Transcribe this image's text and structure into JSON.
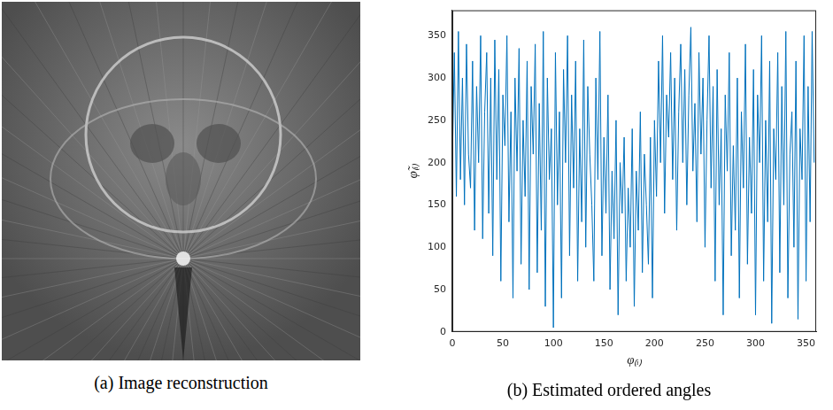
{
  "image_panel": {
    "caption": "(a) Image reconstruction"
  },
  "chart_data": {
    "type": "line",
    "title": "(b) Estimated ordered angles",
    "x_label": "φ₍ᵢ₎",
    "y_label": "φ̃₍ᵢ₎",
    "color": "#0072bd",
    "grid": false,
    "xlim": [
      0,
      360
    ],
    "xticks": [
      0,
      50,
      100,
      150,
      200,
      250,
      300,
      350
    ],
    "ylim": [
      0,
      380
    ],
    "yticks": [
      0,
      50,
      100,
      150,
      200,
      250,
      300,
      350
    ],
    "x": [
      0,
      2,
      4,
      6,
      8,
      10,
      12,
      14,
      16,
      18,
      20,
      22,
      24,
      26,
      28,
      30,
      32,
      34,
      36,
      38,
      40,
      42,
      44,
      46,
      48,
      50,
      52,
      54,
      56,
      58,
      60,
      62,
      64,
      66,
      68,
      70,
      72,
      74,
      76,
      78,
      80,
      82,
      84,
      86,
      88,
      90,
      92,
      94,
      96,
      98,
      100,
      102,
      104,
      106,
      108,
      110,
      112,
      114,
      116,
      118,
      120,
      122,
      124,
      126,
      128,
      130,
      132,
      134,
      136,
      138,
      140,
      142,
      144,
      146,
      148,
      150,
      152,
      154,
      156,
      158,
      160,
      162,
      164,
      166,
      168,
      170,
      172,
      174,
      176,
      178,
      180,
      182,
      184,
      186,
      188,
      190,
      192,
      194,
      196,
      198,
      200,
      202,
      204,
      206,
      208,
      210,
      212,
      214,
      216,
      218,
      220,
      222,
      224,
      226,
      228,
      230,
      232,
      234,
      236,
      238,
      240,
      242,
      244,
      246,
      248,
      250,
      252,
      254,
      256,
      258,
      260,
      262,
      264,
      266,
      268,
      270,
      272,
      274,
      276,
      278,
      280,
      282,
      284,
      286,
      288,
      290,
      292,
      294,
      296,
      298,
      300,
      302,
      304,
      306,
      308,
      310,
      312,
      314,
      316,
      318,
      320,
      322,
      324,
      326,
      328,
      330,
      332,
      334,
      336,
      338,
      340,
      342,
      344,
      346,
      348,
      350,
      352,
      354,
      356,
      358
    ],
    "values": [
      200,
      330,
      160,
      355,
      180,
      300,
      150,
      340,
      210,
      170,
      320,
      120,
      290,
      200,
      350,
      110,
      260,
      330,
      140,
      300,
      90,
      345,
      180,
      310,
      60,
      280,
      220,
      350,
      130,
      260,
      40,
      300,
      190,
      335,
      80,
      250,
      160,
      320,
      50,
      290,
      210,
      340,
      70,
      270,
      120,
      355,
      30,
      300,
      180,
      240,
      5,
      330,
      150,
      260,
      40,
      310,
      200,
      350,
      90,
      280,
      170,
      320,
      60,
      240,
      130,
      345,
      100,
      290,
      210,
      150,
      60,
      300,
      180,
      355,
      90,
      230,
      140,
      280,
      50,
      190,
      110,
      250,
      20,
      200,
      140,
      230,
      60,
      170,
      100,
      240,
      30,
      190,
      120,
      260,
      70,
      210,
      150,
      80,
      230,
      40,
      250,
      160,
      320,
      200,
      350,
      140,
      280,
      230,
      330,
      180,
      300,
      120,
      260,
      340,
      200,
      310,
      150,
      280,
      360,
      190,
      270,
      130,
      330,
      210,
      300,
      100,
      250,
      350,
      170,
      290,
      60,
      310,
      150,
      240,
      20,
      280,
      190,
      330,
      90,
      220,
      120,
      300,
      40,
      260,
      170,
      340,
      80,
      230,
      140,
      310,
      20,
      280,
      200,
      350,
      60,
      250,
      130,
      320,
      10,
      240,
      180,
      330,
      70,
      290,
      150,
      355,
      40,
      210,
      260,
      100,
      320,
      15,
      240,
      180,
      350,
      60,
      290,
      130,
      355,
      200
    ]
  }
}
